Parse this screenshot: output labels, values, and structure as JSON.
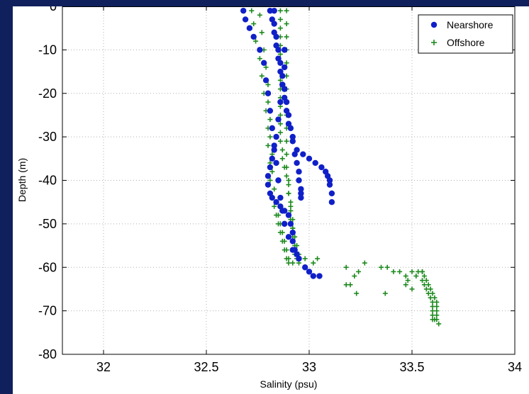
{
  "chart_data": {
    "type": "scatter",
    "xlabel": "Salinity (psu)",
    "ylabel": "Depth (m)",
    "xlim": [
      31.8,
      34
    ],
    "ylim": [
      -80,
      0
    ],
    "xticks": [
      32,
      32.5,
      33,
      33.5,
      34
    ],
    "xtick_labels": [
      "32",
      "32.5",
      "33",
      "33.5",
      "34"
    ],
    "yticks": [
      0,
      -10,
      -20,
      -30,
      -40,
      -50,
      -60,
      -70,
      -80
    ],
    "ytick_labels": [
      "0",
      "-10",
      "-20",
      "-30",
      "-40",
      "-50",
      "-60",
      "-70",
      "-80"
    ],
    "grid": true,
    "legend_position": "top-right",
    "series": [
      {
        "name": "Nearshore",
        "marker": "filled-circle",
        "color": "#1020c8",
        "profiles": [
          {
            "x": [
              32.68,
              32.69,
              32.71,
              32.73,
              32.76,
              32.78,
              32.79,
              32.8,
              32.81,
              32.82,
              32.83,
              32.84,
              32.85,
              32.86,
              32.87,
              32.88,
              32.9,
              32.92,
              32.95,
              32.98,
              33.0,
              33.02,
              33.05
            ],
            "y": [
              -1,
              -3,
              -5,
              -7,
              -10,
              -13,
              -17,
              -20,
              -24,
              -28,
              -32,
              -36,
              -40,
              -44,
              -47,
              -50,
              -53,
              -56,
              -58,
              -60,
              -61,
              -62,
              -62
            ]
          },
          {
            "x": [
              32.81,
              32.82,
              32.83,
              32.84,
              32.85,
              32.86,
              32.87,
              32.88,
              32.89,
              32.9,
              32.92,
              32.94,
              32.97,
              33.0,
              33.03,
              33.06,
              33.08,
              33.09,
              33.1,
              33.1,
              33.11,
              33.11
            ],
            "y": [
              -1,
              -3,
              -6,
              -9,
              -12,
              -15,
              -18,
              -21,
              -24,
              -27,
              -30,
              -33,
              -34,
              -35,
              -36,
              -37,
              -38,
              -39,
              -40,
              -41,
              -43,
              -45
            ]
          },
          {
            "x": [
              32.83,
              32.83,
              32.84,
              32.85,
              32.86,
              32.87,
              32.88,
              32.89,
              32.9,
              32.91,
              32.92,
              32.93,
              32.94,
              32.95,
              32.95,
              32.96,
              32.96,
              32.96
            ],
            "y": [
              -1,
              -4,
              -7,
              -10,
              -13,
              -16,
              -19,
              -22,
              -25,
              -28,
              -31,
              -34,
              -36,
              -38,
              -40,
              -42,
              -43,
              -44
            ]
          },
          {
            "x": [
              32.88,
              32.88,
              32.87,
              32.86,
              32.85,
              32.84,
              32.83,
              32.82,
              32.81,
              32.8,
              32.8,
              32.81,
              32.82,
              32.84,
              32.86,
              32.88,
              32.9,
              32.91,
              32.92,
              32.92,
              32.93,
              32.94
            ],
            "y": [
              -10,
              -14,
              -18,
              -22,
              -26,
              -30,
              -33,
              -35,
              -37,
              -39,
              -41,
              -43,
              -44,
              -45,
              -46,
              -47,
              -48,
              -50,
              -52,
              -54,
              -56,
              -57
            ]
          }
        ]
      },
      {
        "name": "Offshore",
        "marker": "plus",
        "color": "#1e8a1e",
        "profiles": [
          {
            "x": [
              32.72,
              32.73,
              32.74,
              32.76,
              32.77,
              32.78,
              32.79,
              32.8,
              32.8,
              32.81,
              32.81,
              32.82,
              32.83,
              32.84,
              32.85,
              32.86,
              32.87,
              32.88,
              32.89,
              32.9
            ],
            "y": [
              -1,
              -4,
              -8,
              -12,
              -16,
              -20,
              -24,
              -28,
              -32,
              -36,
              -40,
              -44,
              -46,
              -48,
              -50,
              -52,
              -54,
              -56,
              -58,
              -59
            ]
          },
          {
            "x": [
              32.76,
              32.77,
              32.78,
              32.79,
              32.8,
              32.8,
              32.81,
              32.81,
              32.82,
              32.82,
              32.83,
              32.84,
              32.85,
              32.86,
              32.87,
              32.88,
              32.89,
              32.9,
              32.92
            ],
            "y": [
              -2,
              -6,
              -10,
              -14,
              -18,
              -22,
              -26,
              -30,
              -34,
              -38,
              -42,
              -45,
              -48,
              -50,
              -52,
              -54,
              -56,
              -58,
              -59
            ]
          },
          {
            "x": [
              32.86,
              32.86,
              32.86,
              32.86,
              32.86,
              32.86,
              32.86,
              32.86,
              32.86,
              32.86,
              32.86,
              32.86,
              32.86,
              32.86,
              32.86,
              32.86,
              32.87,
              32.87,
              32.88,
              32.89,
              32.9,
              32.9,
              32.91,
              32.91,
              32.92,
              32.92,
              32.93,
              32.94,
              32.95
            ],
            "y": [
              -1,
              -3,
              -5,
              -7,
              -9,
              -11,
              -13,
              -15,
              -17,
              -19,
              -21,
              -23,
              -25,
              -27,
              -29,
              -31,
              -33,
              -35,
              -37,
              -39,
              -41,
              -43,
              -45,
              -47,
              -49,
              -51,
              -53,
              -55,
              -57
            ]
          },
          {
            "x": [
              32.89,
              32.89,
              32.89,
              32.89,
              32.89,
              32.89,
              32.89,
              32.89,
              32.89,
              32.89,
              32.89,
              32.89,
              32.89,
              32.9,
              32.9,
              32.91,
              32.91,
              32.92,
              32.92,
              32.93,
              32.93,
              32.94,
              32.95
            ],
            "y": [
              -1,
              -4,
              -7,
              -10,
              -13,
              -16,
              -19,
              -22,
              -25,
              -28,
              -31,
              -34,
              -37,
              -40,
              -43,
              -46,
              -49,
              -51,
              -53,
              -55,
              -57,
              -58,
              -59
            ]
          },
          {
            "x": [
              32.98,
              33.02,
              33.04,
              33.18,
              33.22,
              33.24,
              33.27,
              33.2,
              33.23,
              33.18
            ],
            "y": [
              -58,
              -59,
              -58,
              -60,
              -62,
              -61,
              -59,
              -64,
              -66,
              -64
            ]
          },
          {
            "x": [
              33.35,
              33.38,
              33.41,
              33.44,
              33.47,
              33.5,
              33.52,
              33.48,
              33.47,
              33.5,
              33.53,
              33.55,
              33.37
            ],
            "y": [
              -60,
              -60,
              -61,
              -61,
              -62,
              -61,
              -62,
              -63,
              -64,
              -65,
              -61,
              -61,
              -66
            ]
          },
          {
            "x": [
              33.55,
              33.56,
              33.57,
              33.58,
              33.59,
              33.6,
              33.61,
              33.62,
              33.62,
              33.62,
              33.62,
              33.62,
              33.63
            ],
            "y": [
              -61,
              -62,
              -63,
              -64,
              -65,
              -66,
              -67,
              -68,
              -69,
              -70,
              -71,
              -72,
              -73
            ]
          },
          {
            "x": [
              33.55,
              33.56,
              33.57,
              33.58,
              33.59,
              33.6,
              33.6,
              33.6,
              33.6,
              33.6,
              33.61
            ],
            "y": [
              -63,
              -64,
              -65,
              -66,
              -67,
              -68,
              -69,
              -70,
              -71,
              -72,
              -72
            ]
          }
        ]
      }
    ]
  }
}
